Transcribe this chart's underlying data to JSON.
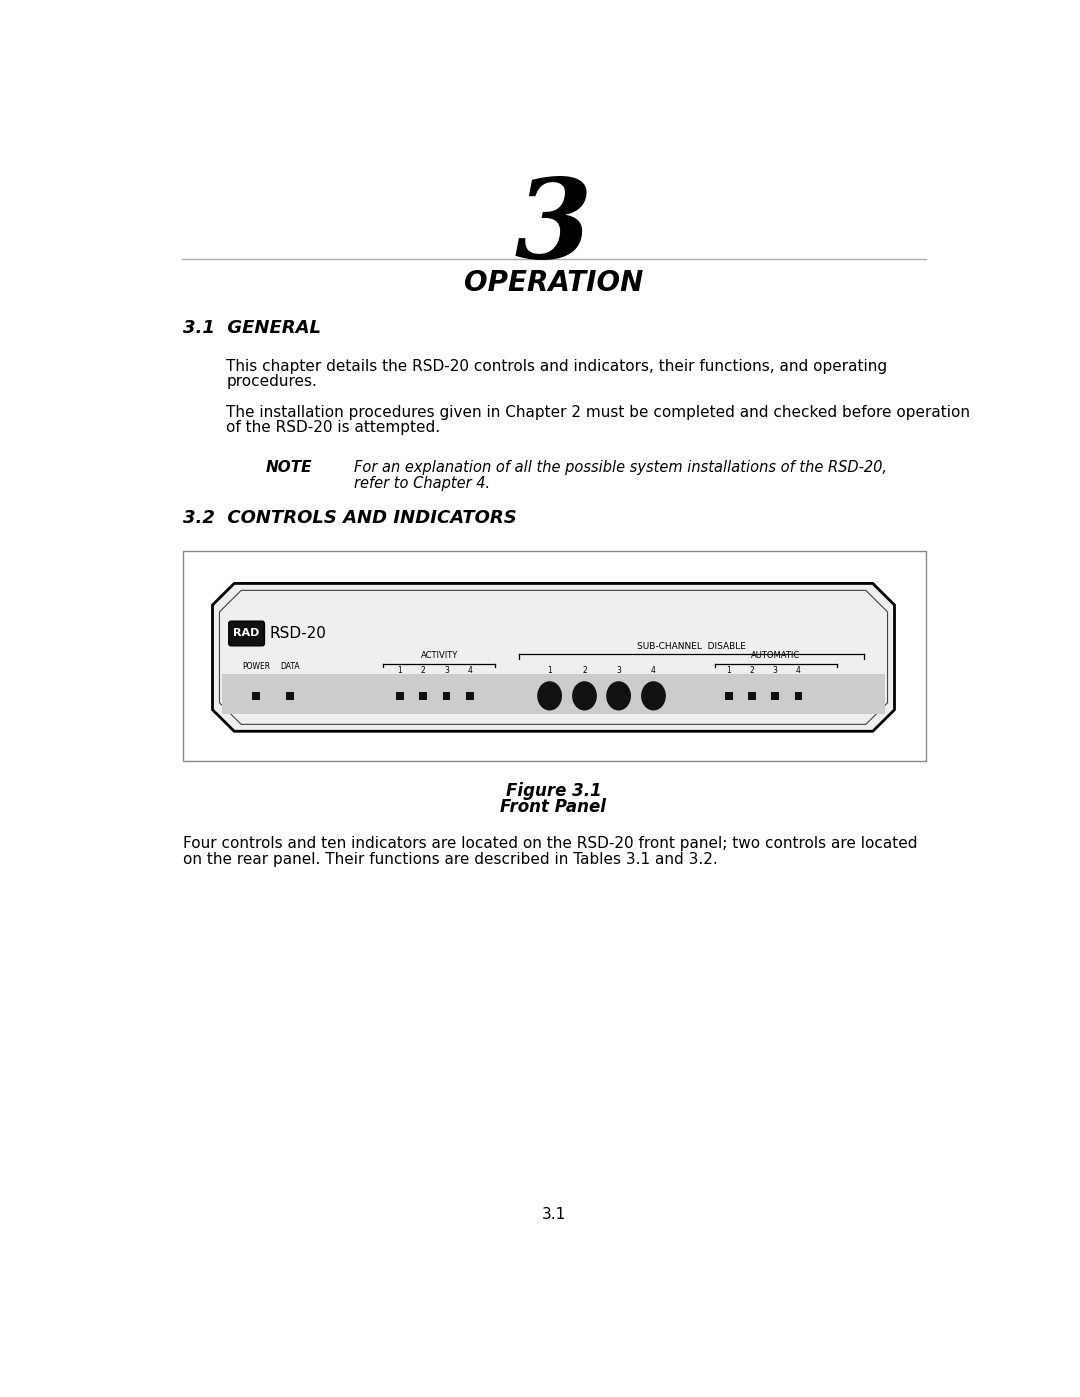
{
  "page_bg": "#ffffff",
  "chapter_number": "3",
  "chapter_title": "OPERATION",
  "section1_title": "3.1  GENERAL",
  "section1_para1_line1": "This chapter details the RSD-20 controls and indicators, their functions, and operating",
  "section1_para1_line2": "procedures.",
  "section1_para2_line1": "The installation procedures given in Chapter 2 must be completed and checked before operation",
  "section1_para2_line2": "of the RSD-20 is attempted.",
  "note_label": "NOTE",
  "note_line1": "For an explanation of all the possible system installations of the RSD-20,",
  "note_line2": "refer to Chapter 4.",
  "section2_title": "3.2  CONTROLS AND INDICATORS",
  "figure_line1": "Figure 3.1",
  "figure_line2": "Front Panel",
  "section2_para_line1": "Four controls and ten indicators are located on the RSD-20 front panel; two controls are located",
  "section2_para_line2": "on the rear panel. Their functions are described in Tables 3.1 and 3.2.",
  "page_number": "3.1",
  "text_color": "#000000",
  "line_color": "#aaaaaa",
  "panel_bg": "#cccccc",
  "panel_border": "#000000",
  "outer_box_border": "#888888",
  "device_face": "#efefef"
}
